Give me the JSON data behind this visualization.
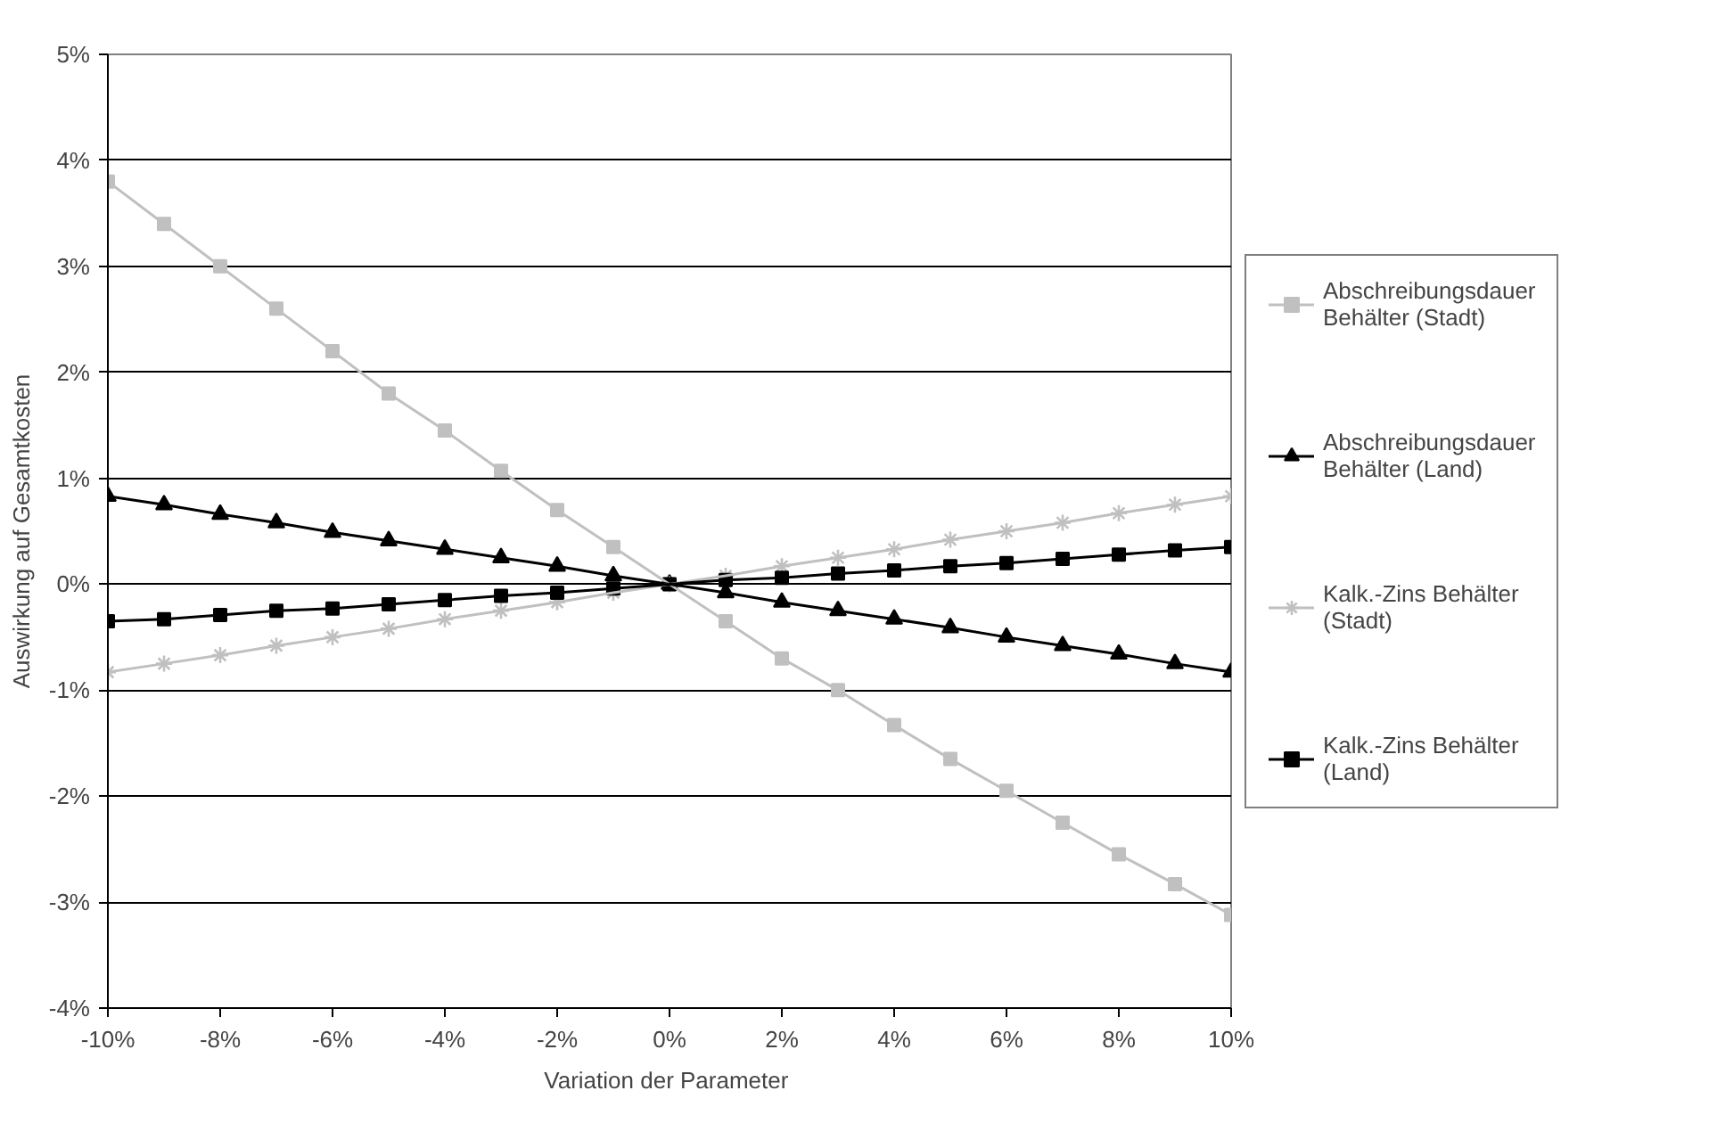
{
  "chart_data": {
    "type": "line",
    "xlabel": "Variation der  Parameter",
    "ylabel": "Auswirkung auf Gesamtkosten",
    "x": [
      -10,
      -9,
      -8,
      -7,
      -6,
      -5,
      -4,
      -3,
      -2,
      -1,
      0,
      1,
      2,
      3,
      4,
      5,
      6,
      7,
      8,
      9,
      10
    ],
    "series": [
      {
        "name": "Abschreibungsdauer Behälter (Stadt)",
        "color": "#c0c0c0",
        "marker": "square",
        "values": [
          3.8,
          3.4,
          3.0,
          2.6,
          2.2,
          1.8,
          1.45,
          1.07,
          0.7,
          0.35,
          0,
          -0.35,
          -0.7,
          -1.0,
          -1.33,
          -1.65,
          -1.95,
          -2.25,
          -2.55,
          -2.83,
          -3.12
        ]
      },
      {
        "name": "Abschreibungsdauer Behälter (Land)",
        "color": "#000000",
        "marker": "triangle",
        "values": [
          0.83,
          0.75,
          0.66,
          0.58,
          0.49,
          0.41,
          0.33,
          0.25,
          0.17,
          0.08,
          0,
          -0.08,
          -0.17,
          -0.25,
          -0.33,
          -0.41,
          -0.5,
          -0.58,
          -0.66,
          -0.75,
          -0.83
        ]
      },
      {
        "name": "Kalk.-Zins Behälter (Stadt)",
        "color": "#c0c0c0",
        "marker": "cross",
        "values": [
          -0.83,
          -0.75,
          -0.67,
          -0.58,
          -0.5,
          -0.42,
          -0.33,
          -0.25,
          -0.17,
          -0.08,
          0,
          0.08,
          0.17,
          0.25,
          0.33,
          0.42,
          0.5,
          0.58,
          0.67,
          0.75,
          0.83
        ]
      },
      {
        "name": "Kalk.-Zins Behälter (Land)",
        "color": "#000000",
        "marker": "square",
        "values": [
          -0.35,
          -0.33,
          -0.29,
          -0.25,
          -0.23,
          -0.19,
          -0.15,
          -0.11,
          -0.08,
          -0.04,
          0,
          0.04,
          0.06,
          0.1,
          0.13,
          0.17,
          0.2,
          0.24,
          0.28,
          0.32,
          0.35
        ]
      }
    ],
    "xlim": [
      -10,
      10
    ],
    "xticks": [
      {
        "value": -10,
        "label": "-10%"
      },
      {
        "value": -8,
        "label": "-8%"
      },
      {
        "value": -6,
        "label": "-6%"
      },
      {
        "value": -4,
        "label": "-4%"
      },
      {
        "value": -2,
        "label": "-2%"
      },
      {
        "value": 0,
        "label": "0%"
      },
      {
        "value": 2,
        "label": "2%"
      },
      {
        "value": 4,
        "label": "4%"
      },
      {
        "value": 6,
        "label": "6%"
      },
      {
        "value": 8,
        "label": "8%"
      },
      {
        "value": 10,
        "label": "10%"
      }
    ],
    "ylim": [
      -4,
      5
    ],
    "yticks": [
      {
        "value": -4,
        "label": "-4%"
      },
      {
        "value": -3,
        "label": "-3%"
      },
      {
        "value": -2,
        "label": "-2%"
      },
      {
        "value": -1,
        "label": "-1%"
      },
      {
        "value": 0,
        "label": "0%"
      },
      {
        "value": 1,
        "label": "1%"
      },
      {
        "value": 2,
        "label": "2%"
      },
      {
        "value": 3,
        "label": "3%"
      },
      {
        "value": 4,
        "label": "4%"
      },
      {
        "value": 5,
        "label": "5%"
      }
    ],
    "grid": "y",
    "legend": "right",
    "line_style": "solid"
  }
}
